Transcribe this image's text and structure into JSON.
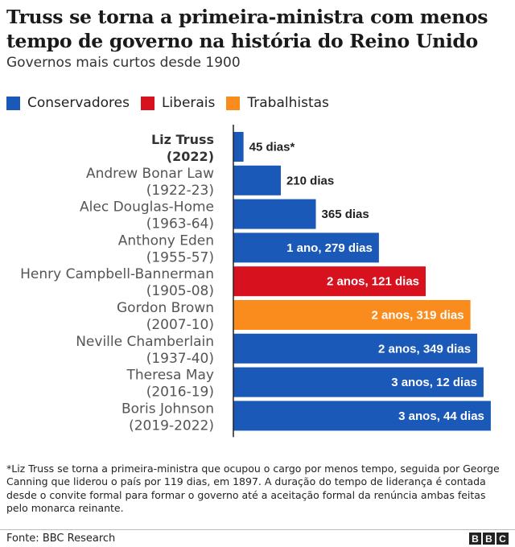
{
  "title": "Truss se torna a primeira-ministra com menos tempo de governo na história do Reino Unido",
  "subtitle": "Governos mais curtos desde 1900",
  "legend": [
    {
      "label": "Conservadores",
      "color": "#1a59b8"
    },
    {
      "label": "Liberais",
      "color": "#d8111e"
    },
    {
      "label": "Trabalhistas",
      "color": "#fa8c1e"
    }
  ],
  "chart_data": {
    "type": "bar",
    "orientation": "horizontal",
    "x_unit": "days",
    "categories": [
      {
        "name": "Liz Truss",
        "years": "(2022)",
        "highlight": true
      },
      {
        "name": "Andrew Bonar Law",
        "years": "(1922-23)"
      },
      {
        "name": "Alec Douglas-Home",
        "years": "(1963-64)"
      },
      {
        "name": "Anthony Eden",
        "years": "(1955-57)"
      },
      {
        "name": "Henry Campbell-Bannerman",
        "years": "(1905-08)"
      },
      {
        "name": "Gordon Brown",
        "years": "(2007-10)"
      },
      {
        "name": "Neville Chamberlain",
        "years": "(1937-40)"
      },
      {
        "name": "Theresa May",
        "years": "(2016-19)"
      },
      {
        "name": "Boris Johnson",
        "years": "(2019-2022)"
      }
    ],
    "values": [
      45,
      210,
      365,
      644,
      851,
      1049,
      1079,
      1107,
      1139
    ],
    "value_labels": [
      "45 dias*",
      "210 dias",
      "365 dias",
      "1 ano, 279 dias",
      "2 anos, 121 dias",
      "2 anos, 319 dias",
      "2 anos, 349 dias",
      "3 anos, 12 dias",
      "3 anos, 44 dias"
    ],
    "party": [
      "Conservadores",
      "Conservadores",
      "Conservadores",
      "Conservadores",
      "Liberais",
      "Trabalhistas",
      "Conservadores",
      "Conservadores",
      "Conservadores"
    ],
    "xlim": [
      0,
      1150
    ],
    "grid": false,
    "legend_position": "top-left"
  },
  "footnote": "*Liz Truss se torna a primeira-ministra que ocupou o cargo por menos tempo, seguida por George Canning que liderou o país por 119 dias, em 1897. A duração do tempo de liderança é contada desde o convite formal para formar o governo até a aceitação formal da renúncia ambas feitas pelo monarca reinante.",
  "source": "Fonte: BBC Research",
  "logo": [
    "B",
    "B",
    "C"
  ]
}
